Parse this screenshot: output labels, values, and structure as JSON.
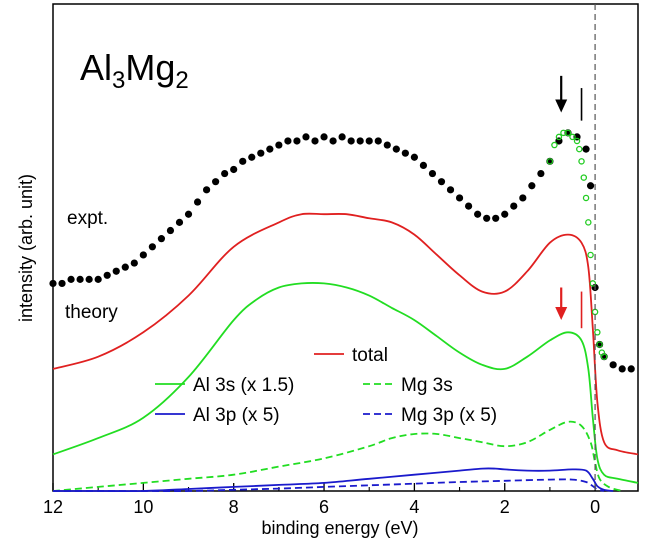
{
  "chart_data": {
    "type": "line",
    "title": "Al3Mg2",
    "title_parts": {
      "a": "Al",
      "a_sub": "3",
      "b": "Mg",
      "b_sub": "2"
    },
    "xlabel": "binding energy (eV)",
    "ylabel": "intensity (arb. unit)",
    "xlim": [
      12,
      -0.95
    ],
    "ylim": [
      0,
      1
    ],
    "x_reversed": true,
    "x_ticks": [
      12,
      10,
      8,
      6,
      4,
      2,
      0
    ],
    "x_tick_labels": [
      "12",
      "10",
      "8",
      "6",
      "4",
      "2",
      "0"
    ],
    "fermi_level": 0,
    "grid": false,
    "labels": {
      "expt": "expt.",
      "theory": "theory"
    },
    "legend": {
      "placement": "bottom-center",
      "entries": [
        {
          "label": "total",
          "color": "#e02020",
          "dash": "solid"
        },
        {
          "label": "Al 3s (x 1.5)",
          "color": "#22dd22",
          "dash": "solid"
        },
        {
          "label": "Mg 3s",
          "color": "#22dd22",
          "dash": "dashed"
        },
        {
          "label": "Al 3p (x 5)",
          "color": "#1a1acc",
          "dash": "solid"
        },
        {
          "label": "Mg 3p (x 5)",
          "color": "#1a1acc",
          "dash": "dashed"
        }
      ]
    },
    "series": [
      {
        "name": "expt.",
        "kind": "points",
        "color": "#000000",
        "x": [
          12.0,
          11.8,
          11.6,
          11.4,
          11.2,
          11.0,
          10.8,
          10.6,
          10.4,
          10.2,
          10.0,
          9.8,
          9.6,
          9.4,
          9.2,
          9.0,
          8.8,
          8.6,
          8.4,
          8.2,
          8.0,
          7.8,
          7.6,
          7.4,
          7.2,
          7.0,
          6.8,
          6.6,
          6.4,
          6.2,
          6.0,
          5.8,
          5.6,
          5.4,
          5.2,
          5.0,
          4.8,
          4.6,
          4.4,
          4.2,
          4.0,
          3.8,
          3.6,
          3.4,
          3.2,
          3.0,
          2.8,
          2.6,
          2.4,
          2.2,
          2.0,
          1.8,
          1.6,
          1.4,
          1.2,
          1.0,
          0.8,
          0.6,
          0.4,
          0.2,
          0.1,
          0.0,
          -0.1,
          -0.2,
          -0.4,
          -0.6,
          -0.8
        ],
        "y": [
          0.51,
          0.51,
          0.52,
          0.52,
          0.52,
          0.52,
          0.53,
          0.54,
          0.55,
          0.56,
          0.58,
          0.6,
          0.62,
          0.64,
          0.66,
          0.68,
          0.71,
          0.74,
          0.76,
          0.78,
          0.79,
          0.81,
          0.82,
          0.83,
          0.84,
          0.85,
          0.86,
          0.86,
          0.87,
          0.86,
          0.87,
          0.86,
          0.87,
          0.86,
          0.86,
          0.86,
          0.86,
          0.85,
          0.84,
          0.83,
          0.82,
          0.8,
          0.78,
          0.76,
          0.74,
          0.72,
          0.7,
          0.68,
          0.67,
          0.67,
          0.68,
          0.7,
          0.72,
          0.75,
          0.78,
          0.81,
          0.86,
          0.88,
          0.87,
          0.84,
          0.75,
          0.5,
          0.36,
          0.33,
          0.31,
          0.3,
          0.3
        ]
      },
      {
        "name": "expt. (hv)",
        "kind": "open-points",
        "color": "#22cc22",
        "x": [
          1.0,
          0.9,
          0.8,
          0.7,
          0.6,
          0.5,
          0.4,
          0.35,
          0.3,
          0.25,
          0.2,
          0.15,
          0.1,
          0.05,
          0.0,
          -0.05,
          -0.1,
          -0.15,
          -0.2
        ],
        "y": [
          0.81,
          0.85,
          0.87,
          0.88,
          0.88,
          0.87,
          0.86,
          0.84,
          0.81,
          0.77,
          0.72,
          0.66,
          0.58,
          0.51,
          0.44,
          0.39,
          0.36,
          0.34,
          0.33
        ]
      },
      {
        "name": "total",
        "kind": "line",
        "color": "#e02020",
        "dash": "solid",
        "x": [
          12.0,
          11.0,
          10.0,
          9.0,
          8.0,
          7.0,
          6.5,
          6.0,
          5.5,
          5.0,
          4.5,
          4.0,
          3.5,
          3.0,
          2.5,
          2.0,
          1.5,
          1.0,
          0.6,
          0.3,
          0.15,
          0.05,
          -0.05,
          -0.2,
          -0.5,
          -0.95
        ],
        "y": [
          0.3,
          0.33,
          0.39,
          0.48,
          0.6,
          0.66,
          0.68,
          0.68,
          0.68,
          0.67,
          0.66,
          0.63,
          0.58,
          0.53,
          0.49,
          0.49,
          0.54,
          0.61,
          0.63,
          0.61,
          0.55,
          0.4,
          0.22,
          0.12,
          0.1,
          0.09
        ]
      },
      {
        "name": "Al 3s (x 1.5)",
        "kind": "line",
        "color": "#22dd22",
        "dash": "solid",
        "x": [
          12.0,
          11.0,
          10.0,
          9.0,
          8.0,
          7.5,
          7.0,
          6.5,
          6.0,
          5.5,
          5.0,
          4.5,
          4.0,
          3.5,
          3.0,
          2.5,
          2.0,
          1.5,
          1.0,
          0.6,
          0.3,
          0.15,
          0.05,
          -0.05,
          -0.2,
          -0.5,
          -0.95
        ],
        "y": [
          0.09,
          0.13,
          0.18,
          0.28,
          0.42,
          0.47,
          0.5,
          0.51,
          0.51,
          0.5,
          0.48,
          0.45,
          0.42,
          0.38,
          0.34,
          0.31,
          0.3,
          0.33,
          0.37,
          0.39,
          0.37,
          0.3,
          0.18,
          0.08,
          0.04,
          0.03,
          0.02
        ]
      },
      {
        "name": "Mg 3s",
        "kind": "line",
        "color": "#22dd22",
        "dash": "dashed",
        "x": [
          12.0,
          11.0,
          10.0,
          9.0,
          8.0,
          7.0,
          6.0,
          5.0,
          4.5,
          4.0,
          3.5,
          3.0,
          2.5,
          2.0,
          1.5,
          1.0,
          0.6,
          0.3,
          0.1,
          0.0,
          -0.1,
          -0.3,
          -0.6
        ],
        "y": [
          0.0,
          0.01,
          0.02,
          0.03,
          0.04,
          0.06,
          0.08,
          0.11,
          0.13,
          0.14,
          0.14,
          0.13,
          0.12,
          0.11,
          0.12,
          0.15,
          0.17,
          0.16,
          0.12,
          0.07,
          0.03,
          0.01,
          0.0
        ]
      },
      {
        "name": "Al 3p (x 5)",
        "kind": "line",
        "color": "#1a1acc",
        "dash": "solid",
        "x": [
          12.0,
          11.0,
          10.0,
          9.0,
          8.0,
          7.0,
          6.0,
          5.0,
          4.0,
          3.0,
          2.5,
          2.2,
          2.0,
          1.5,
          1.0,
          0.5,
          0.2,
          0.05,
          -0.05,
          -0.2,
          -0.4
        ],
        "y": [
          0.0,
          0.0,
          0.0,
          0.005,
          0.01,
          0.015,
          0.02,
          0.03,
          0.04,
          0.05,
          0.055,
          0.055,
          0.053,
          0.05,
          0.05,
          0.053,
          0.05,
          0.03,
          0.012,
          0.003,
          0.0
        ]
      },
      {
        "name": "Mg 3p (x 5)",
        "kind": "line",
        "color": "#1a1acc",
        "dash": "dashed",
        "x": [
          12.0,
          11.0,
          10.0,
          9.0,
          8.0,
          7.0,
          6.0,
          5.0,
          4.0,
          3.0,
          2.0,
          1.0,
          0.5,
          0.2,
          0.05,
          -0.05,
          -0.2
        ],
        "y": [
          0.0,
          0.0,
          0.0,
          0.0,
          0.003,
          0.006,
          0.01,
          0.014,
          0.018,
          0.022,
          0.025,
          0.028,
          0.028,
          0.022,
          0.012,
          0.004,
          0.0
        ]
      }
    ],
    "markers": [
      {
        "type": "arrow",
        "x": 0.75,
        "y_from": 1.02,
        "y_to": 0.93,
        "color": "#000000"
      },
      {
        "type": "tick",
        "x": 0.3,
        "y_from": 0.91,
        "y_to": 0.99,
        "color": "#000000"
      },
      {
        "type": "arrow",
        "x": 0.75,
        "y_from": 0.5,
        "y_to": 0.42,
        "color": "#e02020"
      },
      {
        "type": "tick",
        "x": 0.3,
        "y_from": 0.4,
        "y_to": 0.49,
        "color": "#e02020"
      }
    ]
  }
}
